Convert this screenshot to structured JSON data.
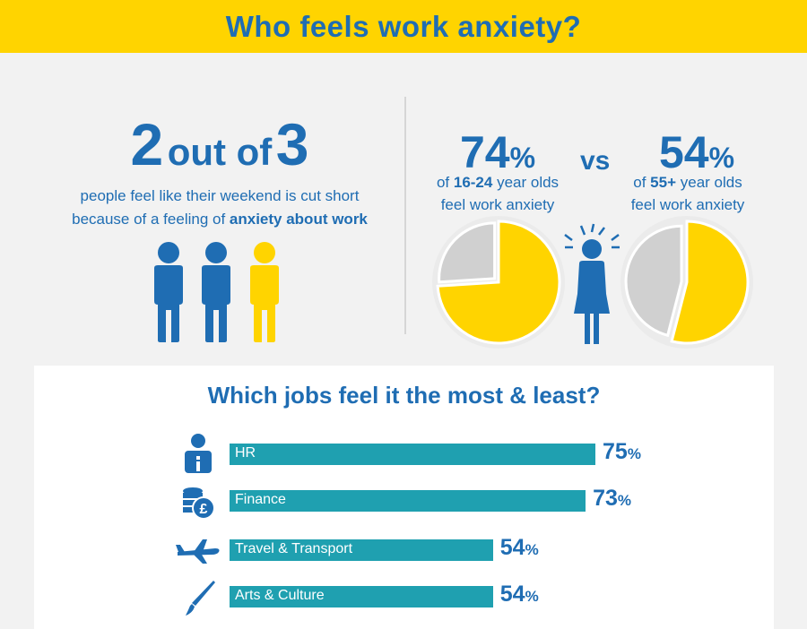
{
  "header": {
    "title": "Who feels work anxiety?"
  },
  "weekend_stat": {
    "num1": "2",
    "middle": "out of",
    "num2": "3",
    "line1": "people feel like their weekend is cut short",
    "line2_prefix": "because of a feeling of ",
    "line2_bold": "anxiety about work"
  },
  "age_compare": {
    "vs": "vs",
    "young": {
      "value": "74",
      "unit": "%",
      "prefix": "of ",
      "bold": "16-24",
      "suffix": " year olds",
      "line2": "feel work anxiety"
    },
    "older": {
      "value": "54",
      "unit": "%",
      "prefix": "of ",
      "bold": "55+",
      "suffix": " year olds",
      "line2": "feel work anxiety"
    }
  },
  "jobs": {
    "title": "Which jobs feel it the most & least?"
  },
  "colors": {
    "blue": "#1f6db3",
    "yellow": "#ffd400",
    "teal": "#1fa0b0",
    "grey": "#d0d0d0"
  },
  "icons": [
    "person-icon",
    "anxious-person-icon",
    "info-person-icon",
    "coins-pound-icon",
    "airplane-icon",
    "paintbrush-icon"
  ],
  "chart_data": [
    {
      "type": "pie",
      "slices": [
        {
          "label": "16-24 year olds feel work anxiety",
          "value": 74
        },
        {
          "label": "rest",
          "value": 26
        }
      ]
    },
    {
      "type": "pie",
      "slices": [
        {
          "label": "55+ year olds feel work anxiety",
          "value": 54
        },
        {
          "label": "rest",
          "value": 46
        }
      ]
    },
    {
      "type": "bar",
      "title": "Which jobs feel it the most & least?",
      "orientation": "horizontal",
      "unit": "%",
      "categories": [
        "HR",
        "Finance",
        "Travel & Transport",
        "Arts & Culture"
      ],
      "values": [
        75,
        73,
        54,
        54
      ],
      "icons": [
        "info-person-icon",
        "coins-pound-icon",
        "airplane-icon",
        "paintbrush-icon"
      ]
    },
    {
      "type": "pictogram",
      "value": 2,
      "total": 3
    }
  ]
}
